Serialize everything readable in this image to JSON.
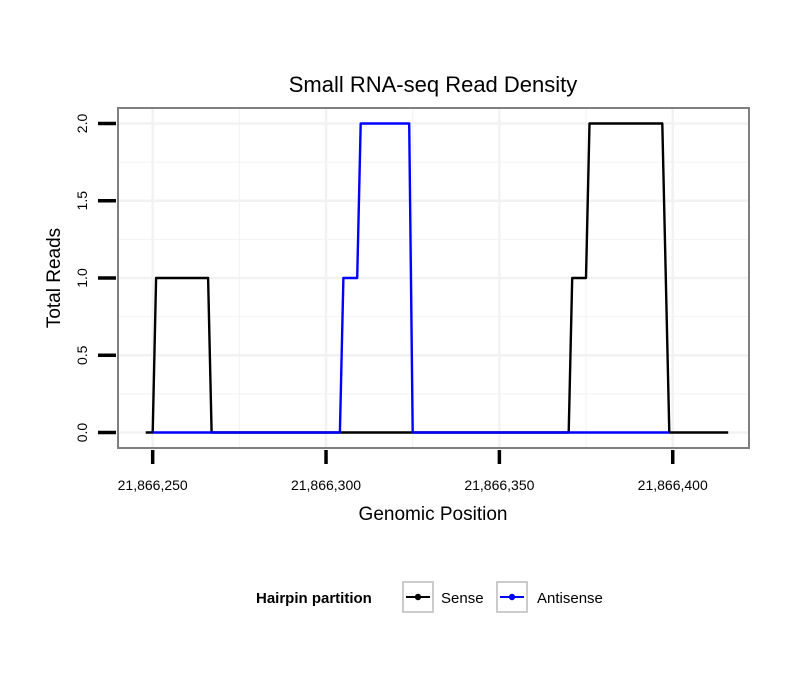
{
  "chart_data": {
    "type": "line",
    "title": "Small RNA-seq Read Density",
    "xlabel": "Genomic Position",
    "ylabel": "Total Reads",
    "xlim": [
      21866240,
      21866422
    ],
    "ylim": [
      -0.1,
      2.1
    ],
    "x_ticks": [
      21866250,
      21866300,
      21866350,
      21866400
    ],
    "x_tick_labels": [
      "21,866,250",
      "21,866,300",
      "21,866,350",
      "21,866,400"
    ],
    "y_ticks": [
      0,
      0.5,
      1,
      1.5,
      2
    ],
    "y_tick_labels": [
      "0.0",
      "0.5",
      "1.0",
      "1.5",
      "2.0"
    ],
    "grid": true,
    "legend": {
      "title": "Hairpin partition",
      "position": "bottom",
      "entries": [
        "Sense",
        "Antisense"
      ]
    },
    "series": [
      {
        "name": "Sense",
        "color": "#000000",
        "points": [
          [
            21866248,
            0
          ],
          [
            21866250,
            0
          ],
          [
            21866251,
            1
          ],
          [
            21866266,
            1
          ],
          [
            21866267,
            0
          ],
          [
            21866305,
            0
          ],
          [
            21866370,
            0
          ],
          [
            21866371,
            1
          ],
          [
            21866375,
            1
          ],
          [
            21866376,
            2
          ],
          [
            21866397,
            2
          ],
          [
            21866399,
            0
          ],
          [
            21866416,
            0
          ]
        ]
      },
      {
        "name": "Antisense",
        "color": "#0000ff",
        "points": [
          [
            21866250,
            0
          ],
          [
            21866267,
            0
          ],
          [
            21866304,
            0
          ],
          [
            21866305,
            1
          ],
          [
            21866309,
            1
          ],
          [
            21866310,
            2
          ],
          [
            21866324,
            2
          ],
          [
            21866325,
            0
          ],
          [
            21866370,
            0
          ],
          [
            21866399,
            0
          ]
        ]
      }
    ]
  }
}
